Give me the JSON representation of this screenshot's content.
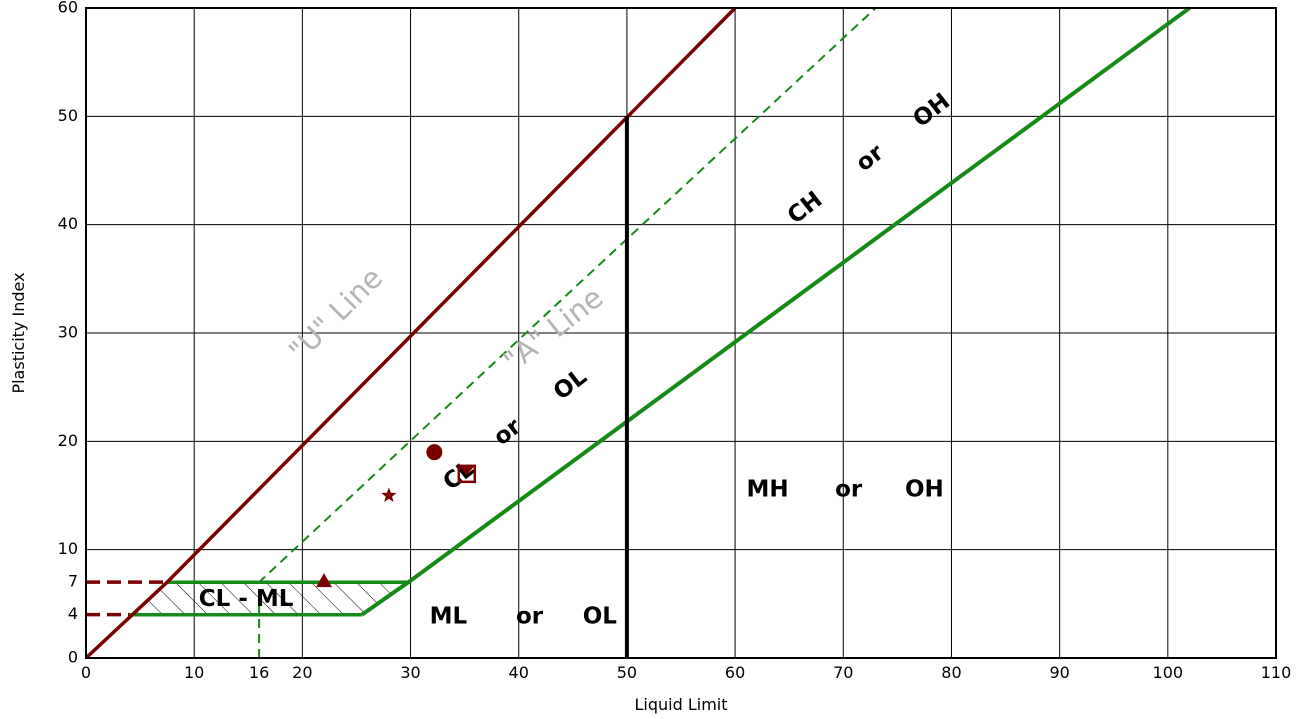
{
  "chart_data": {
    "type": "line",
    "xlabel": "Liquid Limit",
    "ylabel": "Plasticity Index",
    "xlim": [
      0,
      110
    ],
    "ylim": [
      0,
      60
    ],
    "grid": true,
    "x_ticks": [
      0,
      10,
      16,
      20,
      30,
      40,
      50,
      60,
      70,
      80,
      90,
      100,
      110
    ],
    "y_ticks": [
      0,
      4,
      7,
      10,
      20,
      30,
      40,
      50,
      60
    ],
    "x_gridlines": [
      0,
      10,
      20,
      30,
      40,
      50,
      60,
      70,
      80,
      90,
      100,
      110
    ],
    "y_gridlines": [
      0,
      10,
      20,
      30,
      40,
      50,
      60
    ],
    "colors": {
      "u_line": "#7b0000",
      "a_line": "#168a16",
      "dashed": "#168a16",
      "markers": "#7b0000",
      "boundary": "#000000"
    },
    "u_line": {
      "label": "\"U\" Line",
      "points": [
        [
          0,
          0
        ],
        [
          7.5,
          7
        ],
        [
          60,
          60
        ]
      ]
    },
    "a_line": {
      "label": "\"A\" Line",
      "points": [
        [
          25.5,
          4
        ],
        [
          29.8,
          7
        ],
        [
          102,
          60
        ]
      ]
    },
    "dashed_line": {
      "points": [
        [
          16,
          0
        ],
        [
          16,
          7
        ],
        [
          45.5,
          34.5
        ],
        [
          73,
          60
        ]
      ]
    },
    "reference_dashes": [
      {
        "y": 7,
        "x_from": 0,
        "x_to": 7.5
      },
      {
        "y": 4,
        "x_from": 0,
        "x_to": 4
      }
    ],
    "cl_ml_zone": {
      "label": "CL - ML",
      "polygon": [
        [
          4,
          4
        ],
        [
          25.5,
          4
        ],
        [
          29.8,
          7
        ],
        [
          7.5,
          7
        ]
      ]
    },
    "ll50_boundary": {
      "x": 50,
      "y_from": 0,
      "y_to": 50
    },
    "zone_labels": [
      {
        "text": "ML",
        "x": 33.5,
        "y": 3.8,
        "rotate": 0
      },
      {
        "text": "or",
        "x": 41,
        "y": 3.8,
        "rotate": 0
      },
      {
        "text": "OL",
        "x": 47.5,
        "y": 3.8,
        "rotate": 0
      },
      {
        "text": "MH",
        "x": 63,
        "y": 15.5,
        "rotate": 0
      },
      {
        "text": "or",
        "x": 70.5,
        "y": 15.5,
        "rotate": 0
      },
      {
        "text": "OH",
        "x": 77.5,
        "y": 15.5,
        "rotate": 0
      },
      {
        "text": "CL",
        "x": 34.5,
        "y": 16.8,
        "rotate": -38
      },
      {
        "text": "or",
        "x": 39,
        "y": 20.8,
        "rotate": -38
      },
      {
        "text": "OL",
        "x": 44.8,
        "y": 25.2,
        "rotate": -38
      },
      {
        "text": "CH",
        "x": 66.5,
        "y": 41.5,
        "rotate": -38
      },
      {
        "text": "or",
        "x": 72.5,
        "y": 46.1,
        "rotate": -38
      },
      {
        "text": "OH",
        "x": 78.2,
        "y": 50.5,
        "rotate": -38
      }
    ],
    "markers": [
      {
        "shape": "circle",
        "x": 32.2,
        "y": 19
      },
      {
        "shape": "box",
        "x": 35.2,
        "y": 17
      },
      {
        "shape": "star",
        "x": 28,
        "y": 15
      },
      {
        "shape": "triangle",
        "x": 22,
        "y": 7
      }
    ]
  }
}
